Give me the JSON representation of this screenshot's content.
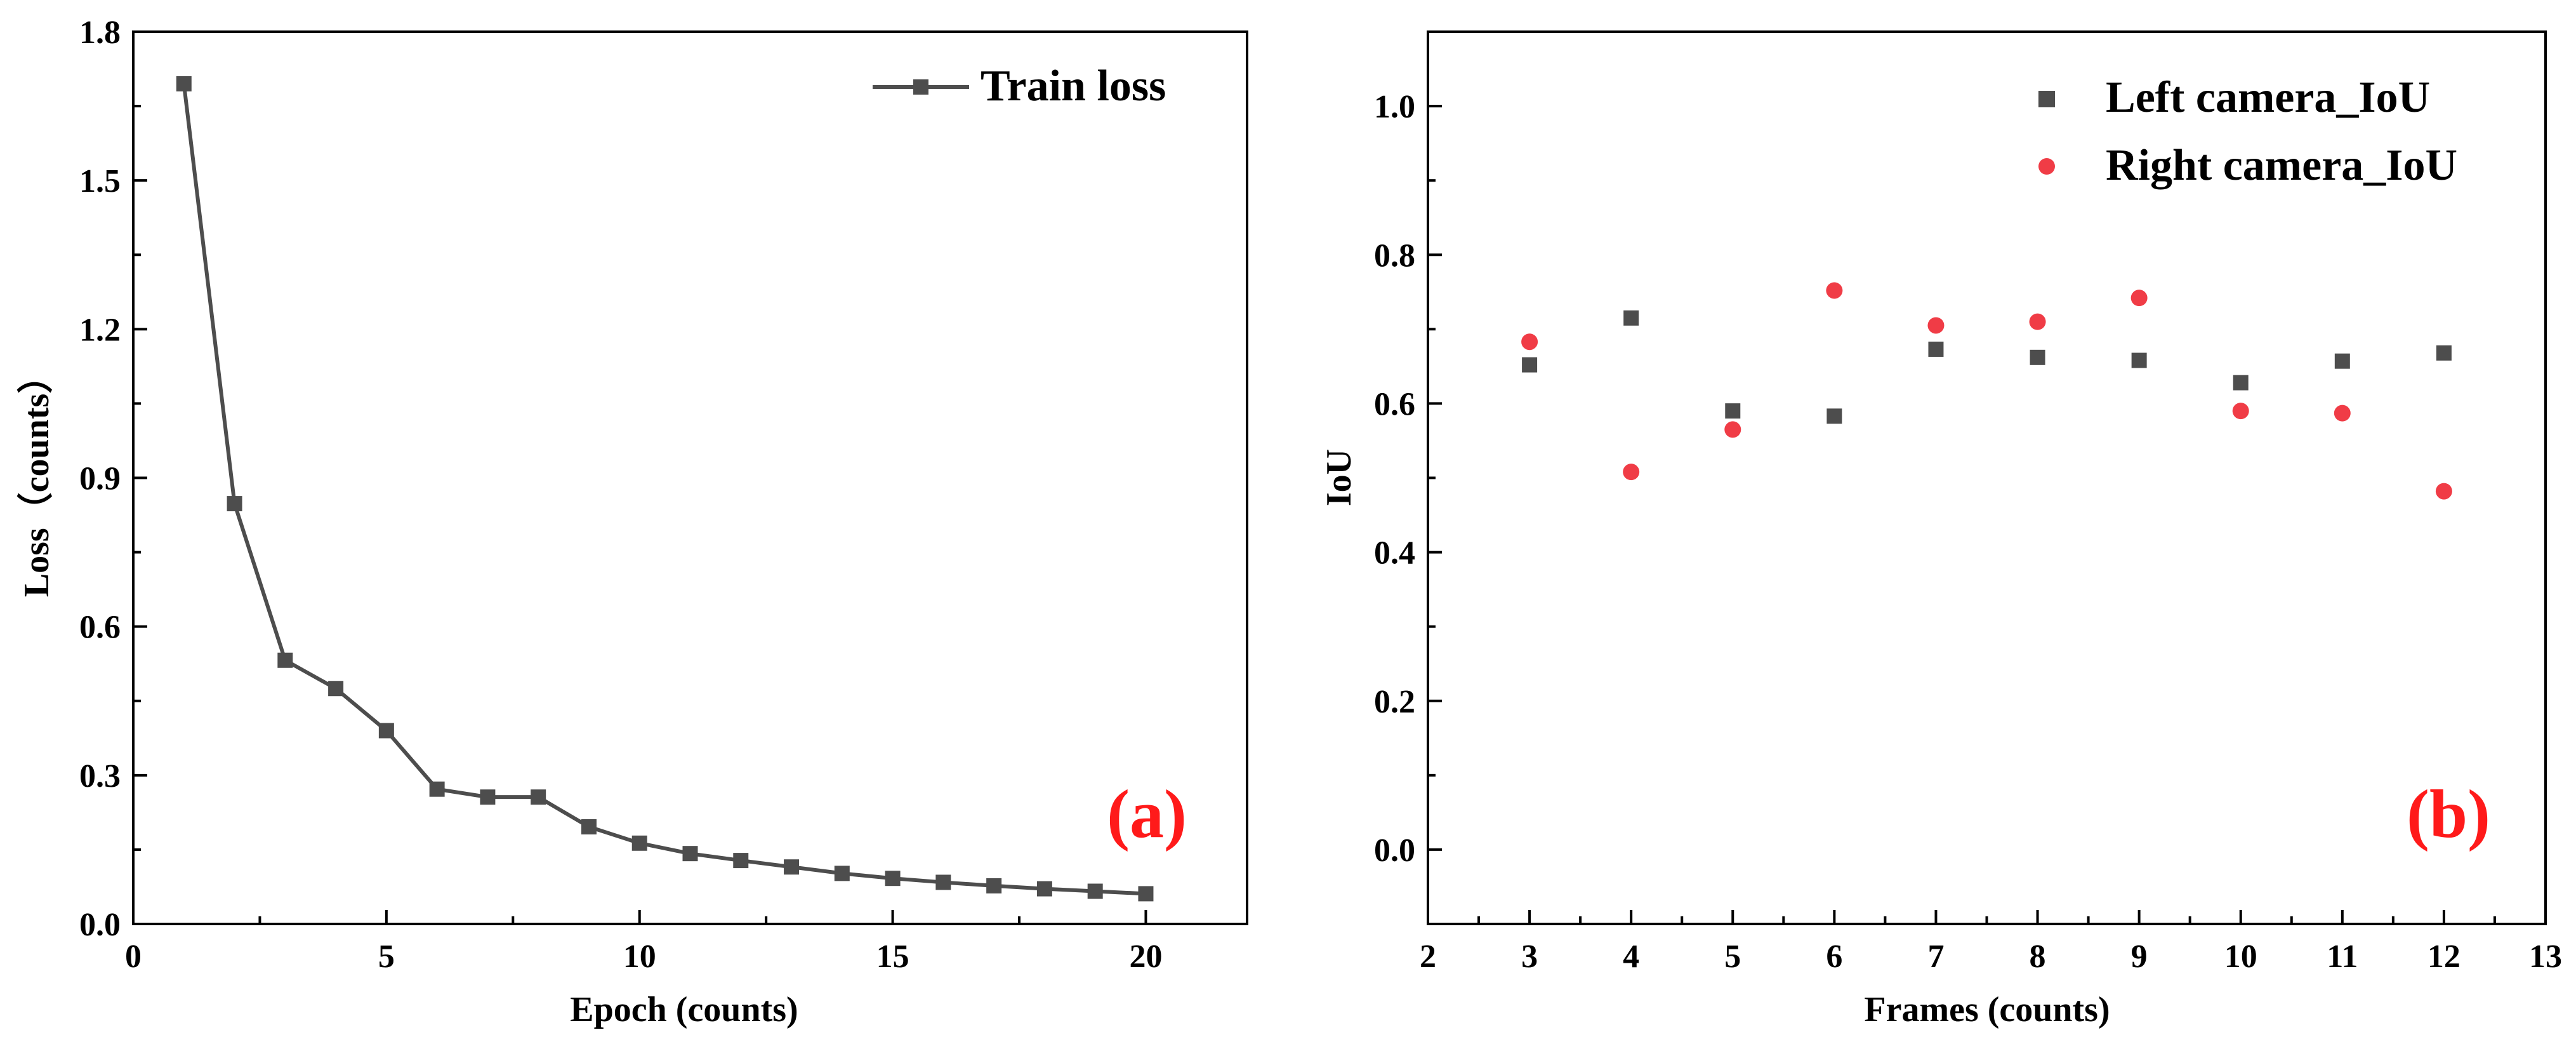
{
  "chart_data": [
    {
      "type": "line",
      "panel_label": "(a)",
      "xlabel": "Epoch (counts)",
      "ylabel": "Loss（counts）",
      "xlim": [
        0,
        22
      ],
      "ylim": [
        0,
        1.8
      ],
      "xticks": [
        "0",
        "5",
        "10",
        "15",
        "20"
      ],
      "yticks": [
        "0.0",
        "0.3",
        "0.6",
        "0.9",
        "1.2",
        "1.5",
        "1.8"
      ],
      "grid": false,
      "legend_position": "top-right",
      "series": [
        {
          "name": "Train loss",
          "color": "#4d4d4d",
          "marker": "square",
          "x": [
            1,
            2,
            3,
            4,
            5,
            6,
            7,
            8,
            9,
            10,
            11,
            12,
            13,
            14,
            15,
            16,
            17,
            18,
            19,
            20
          ],
          "y": [
            1.695,
            0.848,
            0.532,
            0.475,
            0.39,
            0.272,
            0.256,
            0.256,
            0.196,
            0.163,
            0.142,
            0.128,
            0.115,
            0.102,
            0.092,
            0.084,
            0.077,
            0.071,
            0.066,
            0.061
          ]
        }
      ]
    },
    {
      "type": "scatter",
      "panel_label": "(b)",
      "xlabel": "Frames (counts)",
      "ylabel": "IoU",
      "xlim": [
        2,
        13
      ],
      "ylim": [
        -0.1,
        1.1
      ],
      "xticks": [
        "2",
        "3",
        "4",
        "5",
        "6",
        "7",
        "8",
        "9",
        "10",
        "11",
        "12",
        "13"
      ],
      "yticks": [
        "0.0",
        "0.2",
        "0.4",
        "0.6",
        "0.8",
        "1.0"
      ],
      "grid": false,
      "legend_position": "top-right",
      "series": [
        {
          "name": "Left camera_IoU",
          "color": "#4d4d4d",
          "marker": "square",
          "x": [
            3,
            4,
            5,
            6,
            7,
            8,
            9,
            10,
            11,
            12
          ],
          "y": [
            0.652,
            0.715,
            0.59,
            0.583,
            0.673,
            0.662,
            0.658,
            0.628,
            0.657,
            0.668
          ]
        },
        {
          "name": "Right camera_IoU",
          "color": "#f03c46",
          "marker": "circle",
          "x": [
            3,
            4,
            5,
            6,
            7,
            8,
            9,
            10,
            11,
            12
          ],
          "y": [
            0.683,
            0.508,
            0.565,
            0.752,
            0.705,
            0.71,
            0.742,
            0.59,
            0.587,
            0.482
          ]
        }
      ]
    }
  ]
}
